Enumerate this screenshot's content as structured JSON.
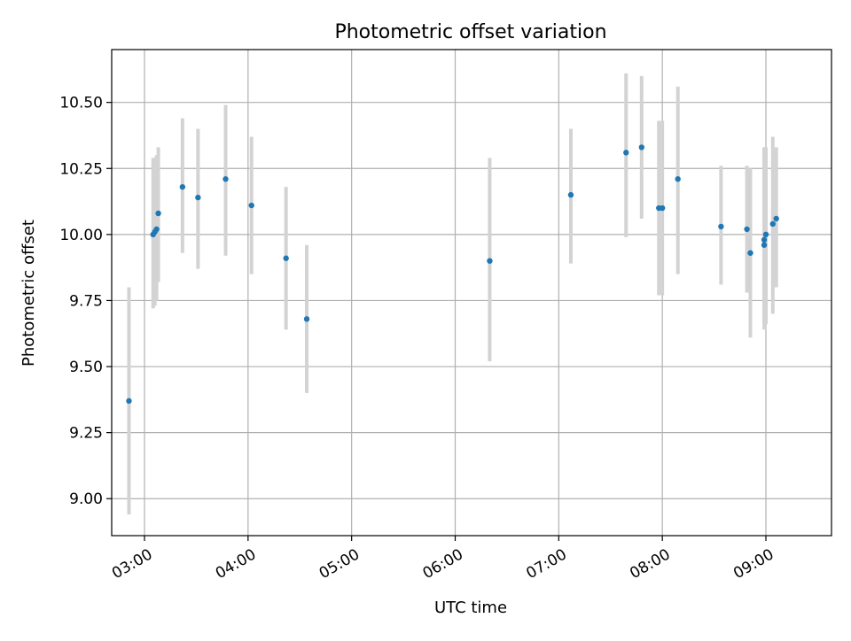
{
  "chart_data": {
    "type": "scatter",
    "title": "Photometric offset variation",
    "xlabel": "UTC time",
    "ylabel": "Photometric offset",
    "x_axis_kind": "time",
    "xlim": [
      "02:41",
      "09:38"
    ],
    "ylim": [
      8.86,
      10.7
    ],
    "grid": true,
    "x_ticks": [
      "03:00",
      "04:00",
      "05:00",
      "06:00",
      "07:00",
      "08:00",
      "09:00"
    ],
    "y_ticks": [
      9.0,
      9.25,
      9.5,
      9.75,
      10.0,
      10.25,
      10.5
    ],
    "y_tick_labels": [
      "9.00",
      "9.25",
      "9.50",
      "9.75",
      "10.00",
      "10.25",
      "10.50"
    ],
    "colors": {
      "marker": "#1f77b4",
      "errorbar": "#d3d3d3",
      "grid": "#b0b0b0",
      "frame": "#000000"
    },
    "points": [
      {
        "x": "02:51",
        "y": 9.37,
        "y_low": 8.94,
        "y_high": 9.8
      },
      {
        "x": "03:05",
        "y": 10.0,
        "y_low": 9.72,
        "y_high": 10.29
      },
      {
        "x": "03:06",
        "y": 10.01,
        "y_low": 9.73,
        "y_high": 10.29
      },
      {
        "x": "03:07",
        "y": 10.02,
        "y_low": 9.75,
        "y_high": 10.3
      },
      {
        "x": "03:08",
        "y": 10.08,
        "y_low": 9.82,
        "y_high": 10.33
      },
      {
        "x": "03:22",
        "y": 10.18,
        "y_low": 9.93,
        "y_high": 10.44
      },
      {
        "x": "03:31",
        "y": 10.14,
        "y_low": 9.87,
        "y_high": 10.4
      },
      {
        "x": "03:47",
        "y": 10.21,
        "y_low": 9.92,
        "y_high": 10.49
      },
      {
        "x": "04:02",
        "y": 10.11,
        "y_low": 9.85,
        "y_high": 10.37
      },
      {
        "x": "04:22",
        "y": 9.91,
        "y_low": 9.64,
        "y_high": 10.18
      },
      {
        "x": "04:34",
        "y": 9.68,
        "y_low": 9.4,
        "y_high": 9.96
      },
      {
        "x": "06:20",
        "y": 9.9,
        "y_low": 9.52,
        "y_high": 10.29
      },
      {
        "x": "07:07",
        "y": 10.15,
        "y_low": 9.89,
        "y_high": 10.4
      },
      {
        "x": "07:39",
        "y": 10.31,
        "y_low": 9.99,
        "y_high": 10.61
      },
      {
        "x": "07:48",
        "y": 10.33,
        "y_low": 10.06,
        "y_high": 10.6
      },
      {
        "x": "07:58",
        "y": 10.1,
        "y_low": 9.77,
        "y_high": 10.43
      },
      {
        "x": "08:00",
        "y": 10.1,
        "y_low": 9.77,
        "y_high": 10.43
      },
      {
        "x": "08:09",
        "y": 10.21,
        "y_low": 9.85,
        "y_high": 10.56
      },
      {
        "x": "08:34",
        "y": 10.03,
        "y_low": 9.81,
        "y_high": 10.26
      },
      {
        "x": "08:49",
        "y": 10.02,
        "y_low": 9.78,
        "y_high": 10.26
      },
      {
        "x": "08:51",
        "y": 9.93,
        "y_low": 9.61,
        "y_high": 10.25
      },
      {
        "x": "08:59",
        "y": 9.96,
        "y_low": 9.64,
        "y_high": 10.33
      },
      {
        "x": "08:59",
        "y": 9.98,
        "y_low": 9.66,
        "y_high": 10.33
      },
      {
        "x": "09:00",
        "y": 10.0,
        "y_low": 9.66,
        "y_high": 10.33
      },
      {
        "x": "09:04",
        "y": 10.04,
        "y_low": 9.7,
        "y_high": 10.37
      },
      {
        "x": "09:06",
        "y": 10.06,
        "y_low": 9.8,
        "y_high": 10.33
      }
    ]
  }
}
